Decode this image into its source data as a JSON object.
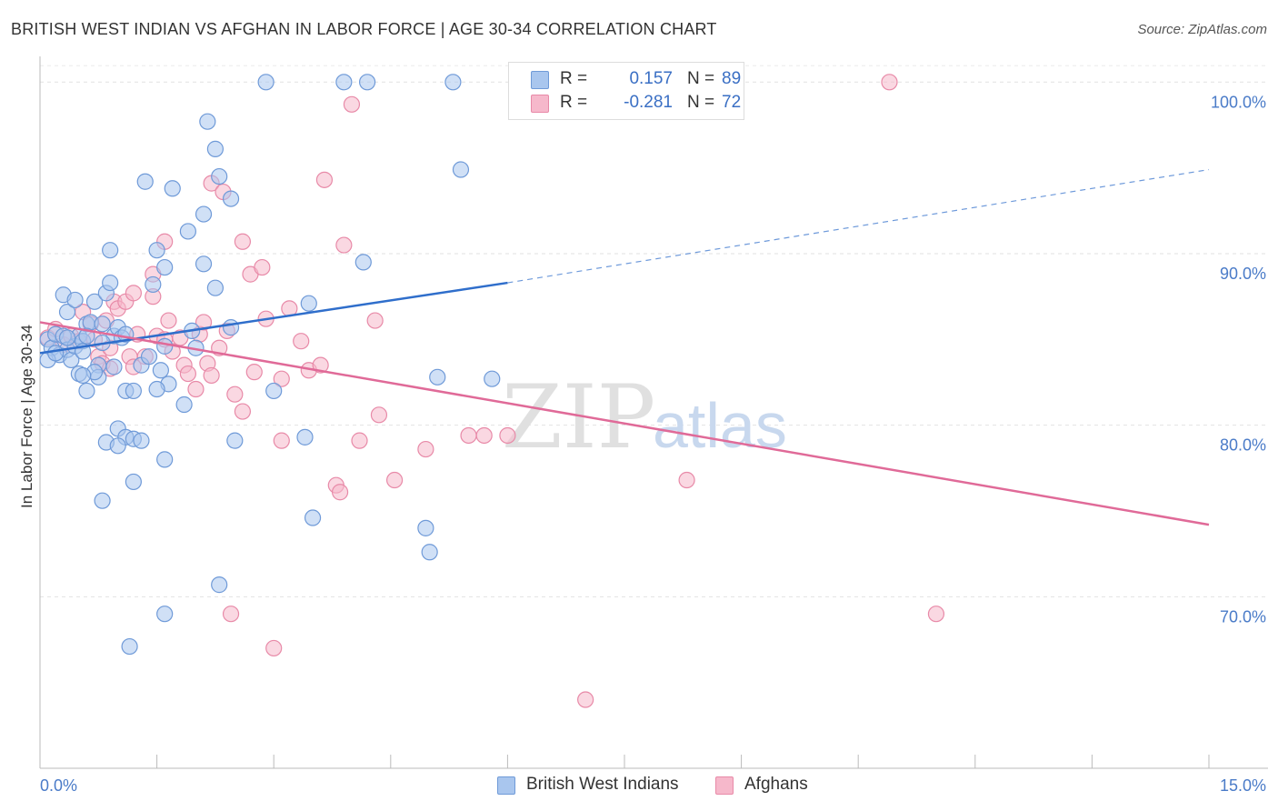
{
  "title": "BRITISH WEST INDIAN VS AFGHAN IN LABOR FORCE | AGE 30-34 CORRELATION CHART",
  "source": "Source: ZipAtlas.com",
  "watermark": {
    "zip": "ZIP",
    "atlas": "atlas"
  },
  "legend": {
    "series1": {
      "r_label": "R =",
      "r_value": "0.157",
      "n_label": "N =",
      "n_value": "89"
    },
    "series2": {
      "r_label": "R =",
      "r_value": "-0.281",
      "n_label": "N =",
      "n_value": "72"
    }
  },
  "colors": {
    "blue_fill": "#a9c6ee",
    "blue_stroke": "#6f9ad8",
    "blue_line": "#2f6ecb",
    "pink_fill": "#f6b8cb",
    "pink_stroke": "#e88aa8",
    "pink_line": "#e06a98"
  },
  "chart_data": {
    "type": "scatter",
    "title": "BRITISH WEST INDIAN VS AFGHAN IN LABOR FORCE | AGE 30-34 CORRELATION CHART",
    "xlabel": "",
    "ylabel": "In Labor Force | Age 30-34",
    "xlim": [
      0,
      15
    ],
    "ylim": [
      60,
      101.5
    ],
    "x_tick_labels": [
      "0.0%",
      "15.0%"
    ],
    "y_ticks": [
      70,
      80,
      90,
      100
    ],
    "y_tick_labels": [
      "70.0%",
      "80.0%",
      "90.0%",
      "100.0%"
    ],
    "series": [
      {
        "name": "British West Indians",
        "trend": {
          "x0": 0,
          "y0": 84.2,
          "x1": 6.0,
          "y1": 88.3,
          "dash_x1": 15,
          "dash_y1": 94.9
        },
        "points": [
          [
            0.1,
            85.0
          ],
          [
            0.15,
            84.5
          ],
          [
            0.2,
            85.3
          ],
          [
            0.25,
            84.1
          ],
          [
            0.3,
            85.2
          ],
          [
            0.35,
            84.4
          ],
          [
            0.4,
            83.8
          ],
          [
            0.45,
            84.6
          ],
          [
            0.5,
            85.2
          ],
          [
            0.55,
            84.9
          ],
          [
            0.1,
            83.8
          ],
          [
            0.2,
            84.2
          ],
          [
            0.3,
            87.6
          ],
          [
            0.35,
            86.6
          ],
          [
            0.45,
            87.3
          ],
          [
            0.55,
            84.3
          ],
          [
            0.6,
            85.9
          ],
          [
            0.65,
            86.0
          ],
          [
            0.7,
            87.2
          ],
          [
            0.75,
            83.5
          ],
          [
            0.8,
            85.9
          ],
          [
            0.85,
            87.7
          ],
          [
            0.9,
            88.3
          ],
          [
            0.95,
            85.2
          ],
          [
            1.0,
            85.7
          ],
          [
            1.05,
            85.1
          ],
          [
            1.1,
            85.3
          ],
          [
            0.5,
            83.0
          ],
          [
            0.6,
            82.0
          ],
          [
            0.75,
            82.8
          ],
          [
            1.1,
            82.0
          ],
          [
            1.2,
            82.0
          ],
          [
            1.3,
            83.5
          ],
          [
            1.45,
            88.2
          ],
          [
            1.6,
            84.6
          ],
          [
            1.65,
            82.4
          ],
          [
            1.95,
            85.5
          ],
          [
            0.9,
            90.2
          ],
          [
            1.5,
            90.2
          ],
          [
            1.6,
            89.2
          ],
          [
            1.35,
            94.2
          ],
          [
            1.7,
            93.8
          ],
          [
            1.9,
            91.3
          ],
          [
            2.1,
            92.3
          ],
          [
            2.15,
            97.7
          ],
          [
            2.25,
            96.1
          ],
          [
            2.25,
            88.0
          ],
          [
            2.3,
            94.5
          ],
          [
            2.45,
            93.2
          ],
          [
            2.1,
            89.4
          ],
          [
            1.0,
            79.8
          ],
          [
            1.1,
            79.3
          ],
          [
            0.85,
            79.0
          ],
          [
            1.0,
            78.8
          ],
          [
            1.6,
            78.0
          ],
          [
            1.2,
            79.2
          ],
          [
            1.3,
            79.1
          ],
          [
            0.8,
            75.6
          ],
          [
            1.2,
            76.7
          ],
          [
            2.5,
            79.1
          ],
          [
            3.4,
            79.3
          ],
          [
            3.5,
            74.6
          ],
          [
            4.95,
            74.0
          ],
          [
            5.0,
            72.6
          ],
          [
            5.1,
            82.8
          ],
          [
            5.8,
            82.7
          ],
          [
            3.0,
            82.0
          ],
          [
            3.45,
            87.1
          ],
          [
            4.15,
            89.5
          ],
          [
            5.4,
            94.9
          ],
          [
            2.3,
            70.7
          ],
          [
            1.6,
            69.0
          ],
          [
            1.15,
            67.1
          ],
          [
            2.9,
            100.0
          ],
          [
            3.9,
            100.0
          ],
          [
            4.2,
            100.0
          ],
          [
            5.3,
            100.0
          ],
          [
            1.85,
            81.2
          ],
          [
            1.4,
            84.0
          ],
          [
            1.55,
            83.2
          ],
          [
            0.7,
            83.1
          ],
          [
            0.8,
            84.8
          ],
          [
            0.6,
            85.2
          ],
          [
            0.95,
            83.4
          ],
          [
            1.5,
            82.1
          ],
          [
            2.0,
            84.5
          ],
          [
            0.55,
            82.9
          ],
          [
            0.35,
            85.1
          ],
          [
            2.45,
            85.7
          ]
        ]
      },
      {
        "name": "Afghans",
        "trend": {
          "x0": 0,
          "y0": 86.0,
          "x1": 15,
          "y1": 74.2
        },
        "points": [
          [
            0.1,
            85.1
          ],
          [
            0.2,
            85.6
          ],
          [
            0.3,
            84.7
          ],
          [
            0.4,
            85.2
          ],
          [
            0.5,
            84.9
          ],
          [
            0.55,
            86.6
          ],
          [
            0.65,
            85.9
          ],
          [
            0.7,
            85.0
          ],
          [
            0.75,
            84.0
          ],
          [
            0.8,
            83.6
          ],
          [
            0.85,
            86.1
          ],
          [
            0.95,
            87.2
          ],
          [
            1.0,
            86.8
          ],
          [
            1.1,
            87.2
          ],
          [
            1.2,
            87.7
          ],
          [
            1.25,
            85.3
          ],
          [
            1.35,
            84.0
          ],
          [
            1.45,
            87.5
          ],
          [
            1.5,
            85.2
          ],
          [
            1.6,
            85.0
          ],
          [
            1.65,
            86.1
          ],
          [
            1.7,
            84.3
          ],
          [
            1.8,
            85.1
          ],
          [
            1.85,
            83.5
          ],
          [
            1.9,
            83.0
          ],
          [
            2.0,
            82.1
          ],
          [
            2.05,
            85.3
          ],
          [
            2.1,
            86.0
          ],
          [
            2.15,
            83.6
          ],
          [
            2.2,
            82.9
          ],
          [
            2.3,
            84.5
          ],
          [
            2.4,
            85.5
          ],
          [
            2.5,
            81.8
          ],
          [
            2.6,
            80.8
          ],
          [
            2.7,
            88.8
          ],
          [
            2.75,
            83.1
          ],
          [
            2.85,
            89.2
          ],
          [
            2.9,
            86.2
          ],
          [
            3.1,
            82.7
          ],
          [
            3.2,
            86.8
          ],
          [
            3.35,
            84.9
          ],
          [
            3.45,
            83.2
          ],
          [
            3.6,
            83.5
          ],
          [
            3.1,
            79.1
          ],
          [
            3.8,
            76.5
          ],
          [
            3.85,
            76.1
          ],
          [
            4.1,
            79.1
          ],
          [
            4.35,
            80.6
          ],
          [
            4.55,
            76.8
          ],
          [
            4.95,
            78.6
          ],
          [
            5.5,
            79.4
          ],
          [
            5.7,
            79.4
          ],
          [
            6.0,
            79.4
          ],
          [
            8.3,
            76.8
          ],
          [
            2.2,
            94.1
          ],
          [
            2.35,
            93.6
          ],
          [
            2.6,
            90.7
          ],
          [
            1.6,
            90.7
          ],
          [
            3.65,
            94.3
          ],
          [
            3.9,
            90.5
          ],
          [
            4.0,
            98.7
          ],
          [
            4.3,
            86.1
          ],
          [
            10.9,
            100.0
          ],
          [
            1.45,
            88.8
          ],
          [
            1.15,
            84.0
          ],
          [
            0.9,
            83.3
          ],
          [
            2.45,
            69.0
          ],
          [
            3.0,
            67.0
          ],
          [
            11.5,
            69.0
          ],
          [
            7.0,
            64.0
          ],
          [
            1.2,
            83.4
          ],
          [
            0.9,
            84.5
          ]
        ]
      }
    ]
  }
}
